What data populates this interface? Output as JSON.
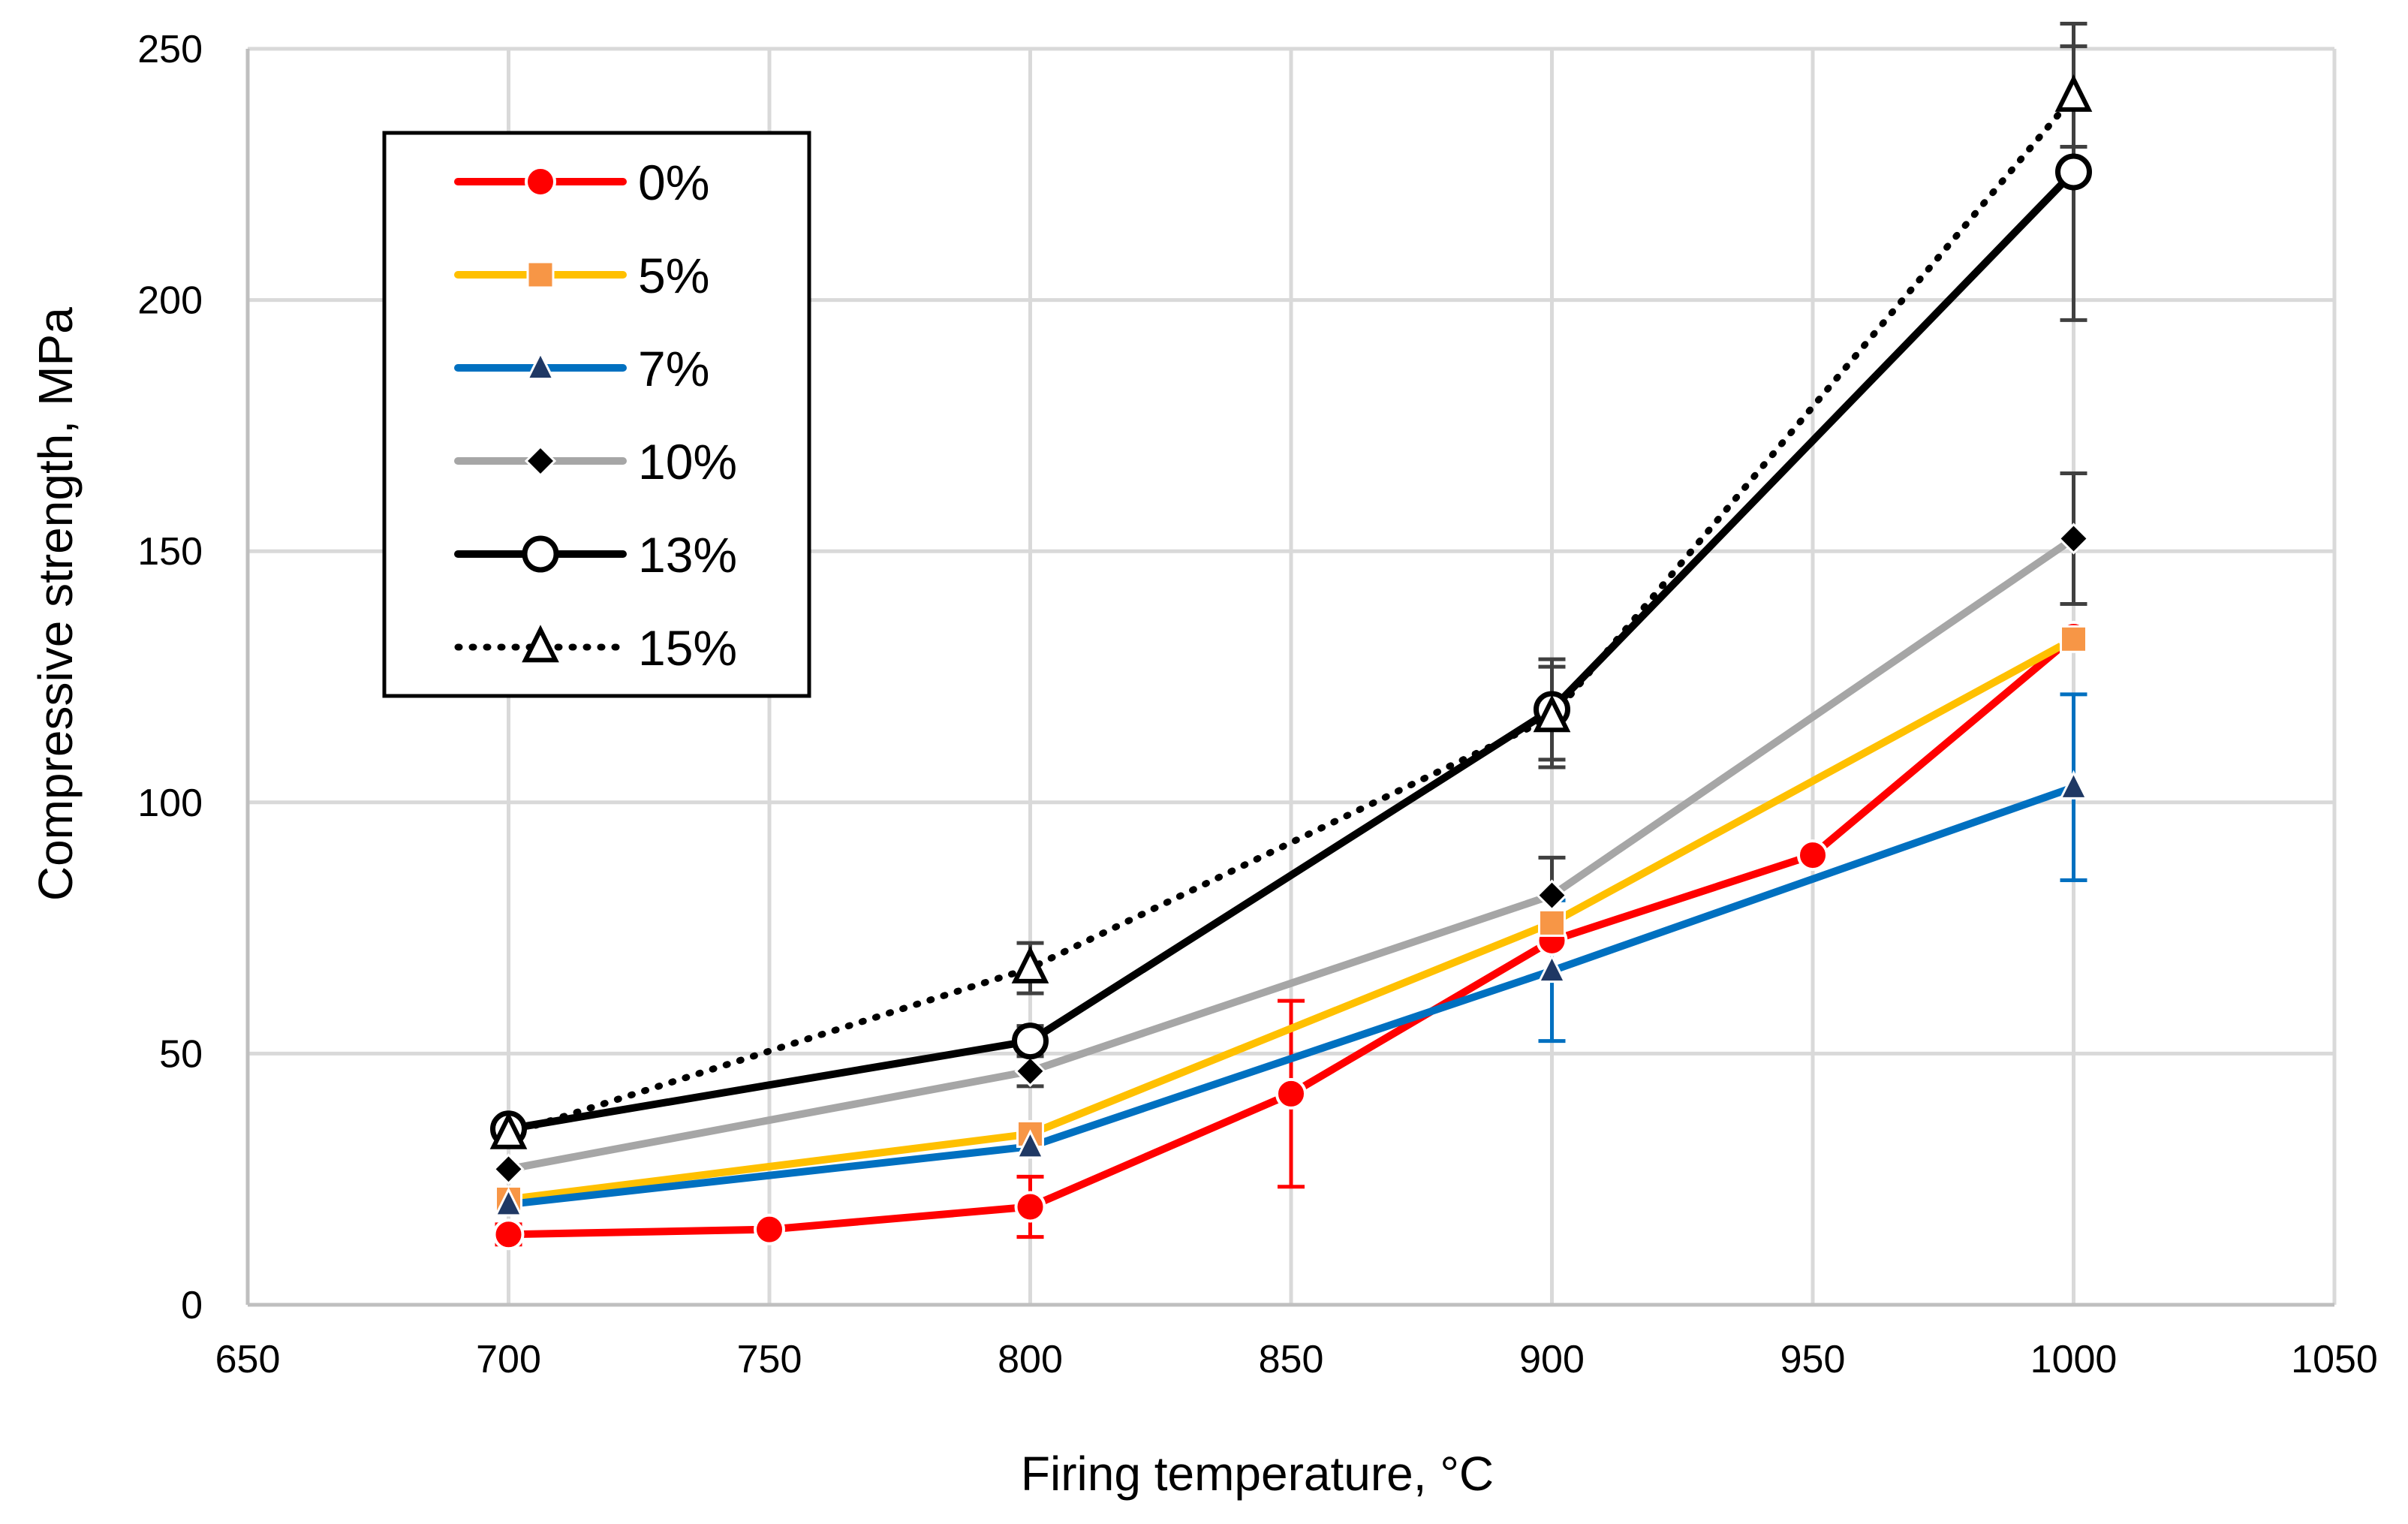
{
  "chart_data": {
    "type": "line",
    "title": "",
    "xlabel": "Firing temperature, °C",
    "ylabel_parts": [
      "Compressive strength,",
      "MPa"
    ],
    "xlim": [
      650,
      1050
    ],
    "ylim": [
      0,
      250
    ],
    "xticks": [
      650,
      700,
      750,
      800,
      850,
      900,
      950,
      1000,
      1050
    ],
    "yticks": [
      0,
      50,
      100,
      150,
      200,
      250
    ],
    "grid": true,
    "legend_position": "top-left",
    "series": [
      {
        "name": "0%",
        "color": "#ff0000",
        "line_style": "solid",
        "marker": "circle",
        "marker_color": "#ff0000",
        "marker_filled": true,
        "x": [
          700,
          750,
          800,
          850,
          900,
          950,
          1000
        ],
        "y": [
          14,
          15,
          19.5,
          42,
          72.5,
          89.5,
          133
        ],
        "error": [
          2,
          null,
          6,
          18.5,
          null,
          null,
          null
        ],
        "error_color": "#ff0000"
      },
      {
        "name": "5%",
        "color": "#ffc000",
        "line_style": "solid",
        "marker": "square",
        "marker_color": "#f79646",
        "marker_filled": true,
        "x": [
          700,
          800,
          900,
          1000
        ],
        "y": [
          21,
          34,
          76,
          132.5
        ],
        "error": [
          null,
          null,
          null,
          null
        ],
        "error_color": "#f79646"
      },
      {
        "name": "7%",
        "color": "#0070c0",
        "line_style": "solid",
        "marker": "triangle",
        "marker_color": "#1f3864",
        "marker_filled": true,
        "x": [
          700,
          800,
          900,
          1000
        ],
        "y": [
          20,
          31.5,
          66.5,
          103
        ],
        "error": [
          null,
          null,
          14,
          18.5
        ],
        "error_color": "#0070c0"
      },
      {
        "name": "10%",
        "color": "#a6a6a6",
        "line_style": "solid",
        "marker": "diamond",
        "marker_color": "#000000",
        "marker_filled": true,
        "x": [
          700,
          800,
          900,
          1000
        ],
        "y": [
          27,
          46.5,
          81.5,
          152.5
        ],
        "error": [
          null,
          3,
          7.5,
          13
        ],
        "error_color": "#404040"
      },
      {
        "name": "13%",
        "color": "#000000",
        "line_style": "solid",
        "marker": "circle",
        "marker_color": "#000000",
        "marker_filled": false,
        "x": [
          700,
          800,
          900,
          1000
        ],
        "y": [
          35,
          52.5,
          118.5,
          225.5
        ],
        "error": [
          2,
          3,
          10,
          29.5
        ],
        "error_color": "#404040"
      },
      {
        "name": "15%",
        "color": "#000000",
        "line_style": "dotted",
        "marker": "triangle",
        "marker_color": "#000000",
        "marker_filled": false,
        "x": [
          700,
          800,
          900,
          1000
        ],
        "y": [
          34,
          67,
          117,
          240.5
        ],
        "error": [
          2,
          5,
          10,
          10
        ],
        "error_color": "#404040"
      }
    ]
  }
}
